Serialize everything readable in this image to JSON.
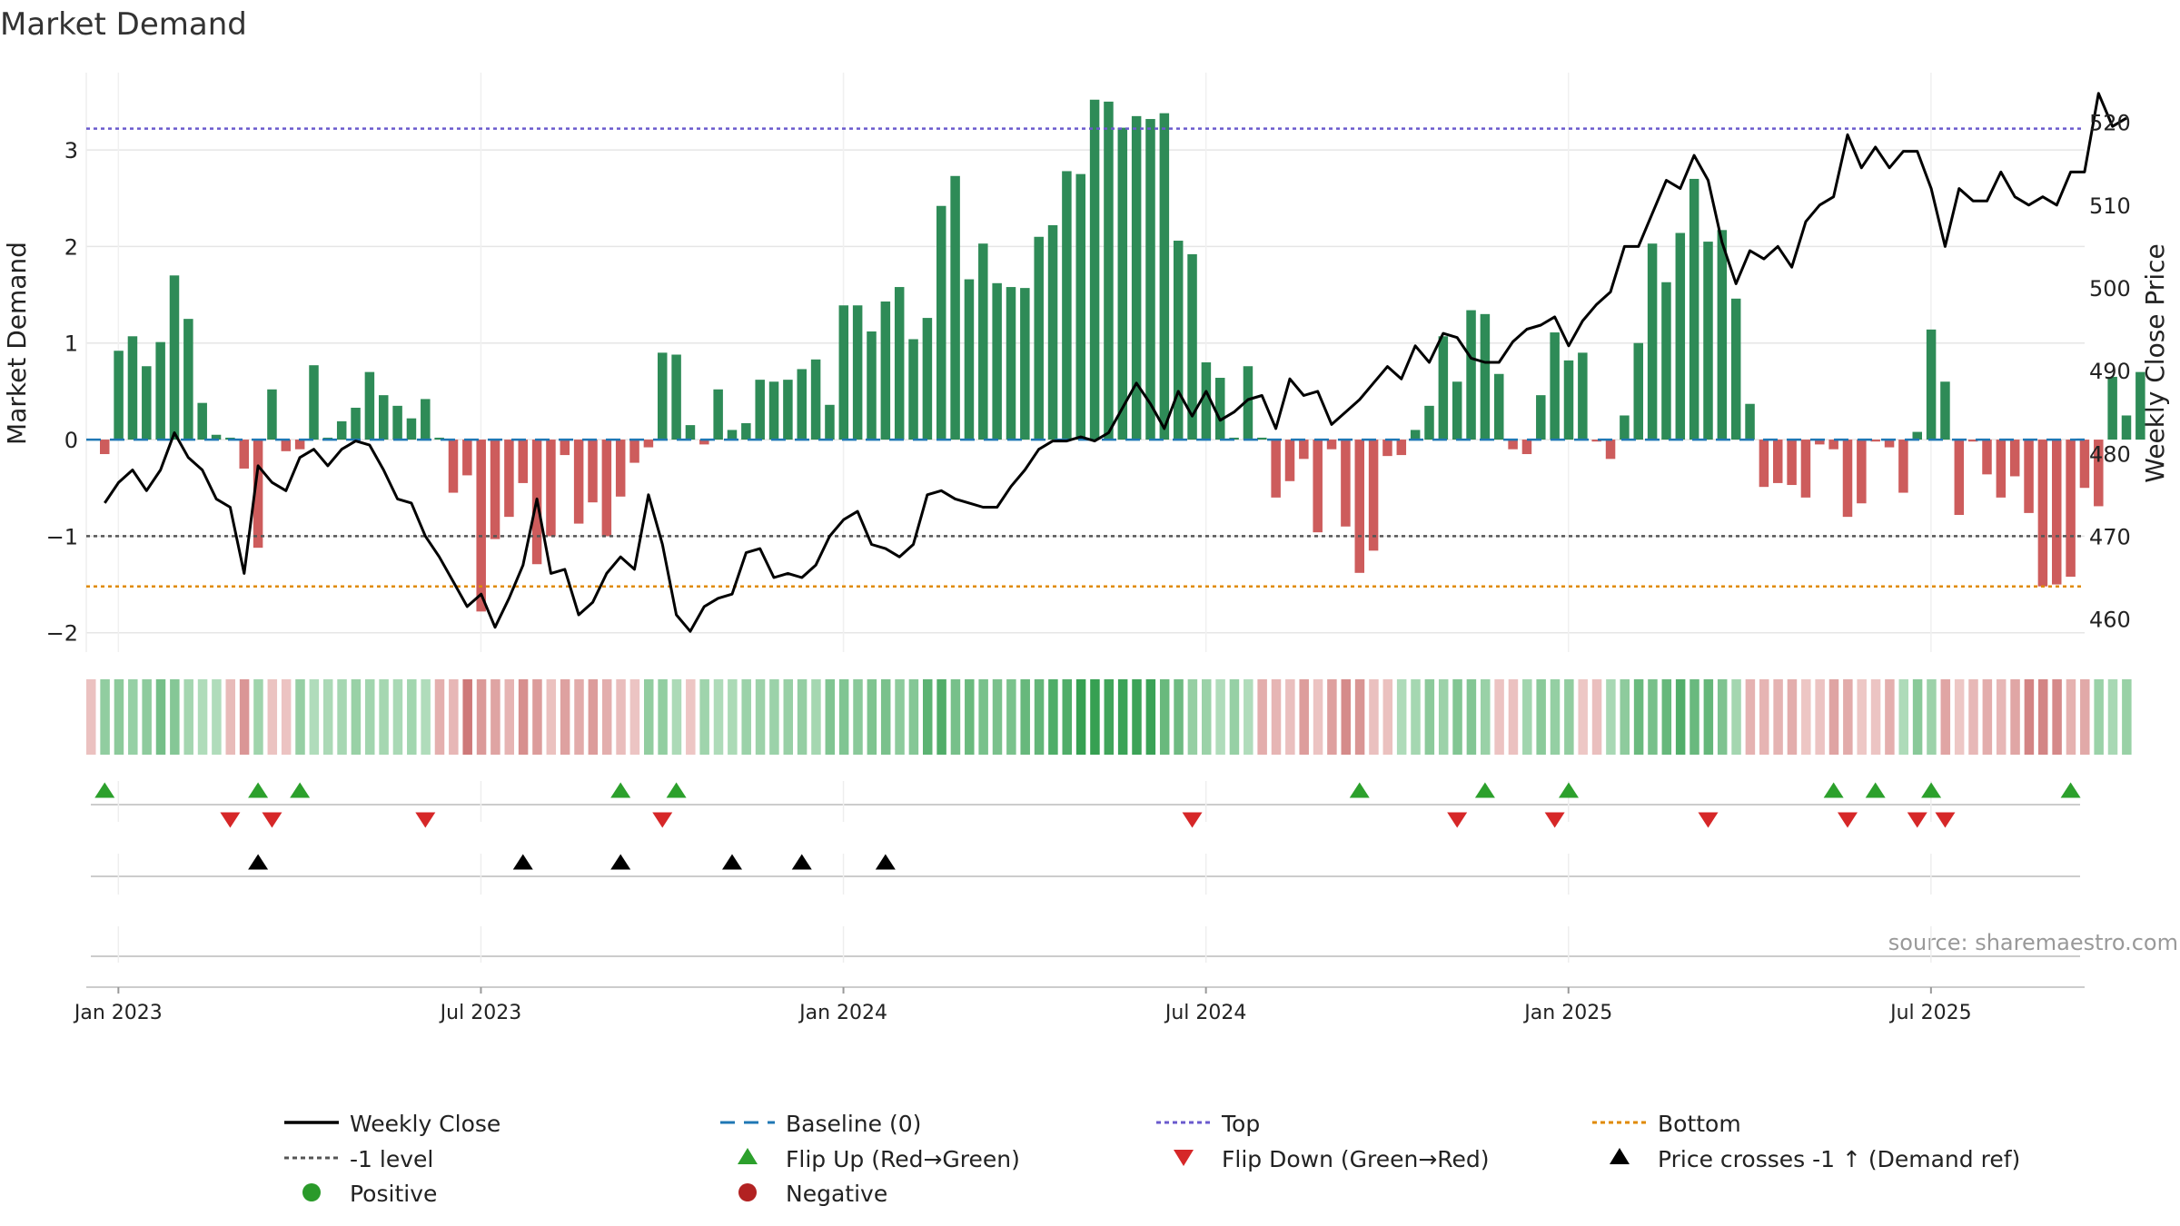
{
  "chart_data": {
    "type": "bar",
    "title": "Market Demand",
    "ylabel_left": "Market Demand",
    "ylabel_right": "Weekly Close Price",
    "source": "source: sharemaestro.com",
    "ylim_left": [
      -2.2,
      3.8
    ],
    "ylim_right": [
      456.0,
      526.0
    ],
    "yticks_left": [
      -2,
      -1,
      0,
      1,
      2,
      3
    ],
    "yticks_right": [
      460,
      470,
      480,
      490,
      500,
      510,
      520
    ],
    "xtick_labels": [
      "Jan 2023",
      "Jul 2023",
      "Jan 2024",
      "Jul 2024",
      "Jan 2025",
      "Jul 2025"
    ],
    "xtick_week_index": [
      1,
      27,
      53,
      79,
      105,
      131
    ],
    "reference_lines": {
      "baseline": 0,
      "top": 3.22,
      "minus_one": -1,
      "bottom": -1.52
    },
    "demand": [
      -0.15,
      0.92,
      1.07,
      0.76,
      1.01,
      1.7,
      1.25,
      0.38,
      0.05,
      0.02,
      -0.3,
      -1.12,
      0.52,
      -0.12,
      -0.1,
      0.77,
      0.02,
      0.19,
      0.33,
      0.7,
      0.46,
      0.35,
      0.22,
      0.42,
      0.02,
      -0.55,
      -0.37,
      -1.78,
      -1.03,
      -0.8,
      -0.45,
      -1.29,
      -1.0,
      -0.16,
      -0.87,
      -0.65,
      -1.0,
      -0.59,
      -0.24,
      -0.08,
      0.9,
      0.88,
      0.15,
      -0.05,
      0.52,
      0.1,
      0.17,
      0.62,
      0.6,
      0.62,
      0.73,
      0.83,
      0.36,
      1.39,
      1.39,
      1.12,
      1.43,
      1.58,
      1.04,
      1.26,
      2.42,
      2.73,
      1.66,
      2.03,
      1.62,
      1.58,
      1.57,
      2.1,
      2.22,
      2.78,
      2.75,
      3.52,
      3.5,
      3.23,
      3.35,
      3.32,
      3.38,
      2.06,
      1.92,
      0.8,
      0.64,
      0.02,
      0.76,
      0.02,
      -0.6,
      -0.43,
      -0.2,
      -0.96,
      -0.1,
      -0.9,
      -1.38,
      -1.15,
      -0.17,
      -0.16,
      0.1,
      0.35,
      1.07,
      0.6,
      1.34,
      1.3,
      0.68,
      -0.1,
      -0.15,
      0.46,
      1.11,
      0.82,
      0.9,
      -0.02,
      -0.2,
      0.25,
      1.0,
      2.03,
      1.63,
      2.14,
      2.7,
      2.05,
      2.17,
      1.46,
      0.37,
      -0.49,
      -0.45,
      -0.47,
      -0.6,
      -0.05,
      -0.1,
      -0.8,
      -0.66,
      -0.02,
      -0.08,
      -0.55,
      0.08,
      1.14,
      0.6,
      -0.78,
      -0.02,
      -0.36,
      -0.6,
      -0.38,
      -0.76,
      -1.52,
      -1.5,
      -1.42,
      -0.5,
      -0.69,
      0.65,
      0.25,
      0.7
    ],
    "weekly_close": [
      474.0,
      476.5,
      478.0,
      475.5,
      478.0,
      482.5,
      479.5,
      478.0,
      474.5,
      473.5,
      465.5,
      478.5,
      476.5,
      475.5,
      479.5,
      480.5,
      478.5,
      480.5,
      481.5,
      481.0,
      478.0,
      474.5,
      474.0,
      470.0,
      467.5,
      464.5,
      461.5,
      463.0,
      459.0,
      462.5,
      466.5,
      474.5,
      465.5,
      466.0,
      460.5,
      462.0,
      465.5,
      467.5,
      466.0,
      475.0,
      469.0,
      460.5,
      458.5,
      461.5,
      462.5,
      463.0,
      468.0,
      468.5,
      465.0,
      465.5,
      465.0,
      466.5,
      470.0,
      472.0,
      473.0,
      469.0,
      468.5,
      467.5,
      469.0,
      475.0,
      475.5,
      474.5,
      474.0,
      473.5,
      473.5,
      476.0,
      478.0,
      480.5,
      481.5,
      481.5,
      482.0,
      481.5,
      482.5,
      485.5,
      488.5,
      486.0,
      483.0,
      487.5,
      484.5,
      487.5,
      484.0,
      485.0,
      486.5,
      487.0,
      483.0,
      489.0,
      487.0,
      487.5,
      483.5,
      485.0,
      486.5,
      488.5,
      490.5,
      489.0,
      493.0,
      491.0,
      494.5,
      494.0,
      491.5,
      491.0,
      491.0,
      493.5,
      495.0,
      495.5,
      496.5,
      493.0,
      496.0,
      498.0,
      499.5,
      505.0,
      505.0,
      509.0,
      513.0,
      512.0,
      516.0,
      513.0,
      505.5,
      500.5,
      504.5,
      503.5,
      505.0,
      502.5,
      508.0,
      510.0,
      511.0,
      518.5,
      514.5,
      517.0,
      514.5,
      516.5,
      516.5,
      512.0,
      505.0,
      512.0,
      510.5,
      510.5,
      514.0,
      511.0,
      510.0,
      511.0,
      510.0,
      514.0,
      514.0,
      523.5,
      519.5,
      520.5
    ],
    "flip_up_weeks": [
      0,
      11,
      14,
      37,
      41,
      90,
      99,
      105,
      124,
      127,
      131,
      141
    ],
    "flip_down_weeks": [
      9,
      12,
      23,
      40,
      78,
      97,
      104,
      115,
      125,
      130,
      132
    ],
    "price_cross_weeks": [
      11,
      30,
      37,
      45,
      50,
      56
    ]
  },
  "legend": [
    {
      "label": "Weekly Close",
      "symbol": "solid-line",
      "color": "#000000"
    },
    {
      "label": "Baseline (0)",
      "symbol": "dashed-line",
      "color": "#1f77b4"
    },
    {
      "label": "Top",
      "symbol": "dotted-line",
      "color": "#6a5acd"
    },
    {
      "label": "Bottom",
      "symbol": "dotted-line",
      "color": "#e08a00"
    },
    {
      "label": "-1 level",
      "symbol": "dotted-line",
      "color": "#555555"
    },
    {
      "label": "Flip Up (Red→Green)",
      "symbol": "triangle-up",
      "color": "#2ca02c"
    },
    {
      "label": "Flip Down (Green→Red)",
      "symbol": "triangle-down",
      "color": "#d62728"
    },
    {
      "label": "Price crosses -1 ↑ (Demand ref)",
      "symbol": "triangle-up",
      "color": "#000000"
    },
    {
      "label": "Positive",
      "symbol": "circle",
      "color": "#2a9a2a"
    },
    {
      "label": "Negative",
      "symbol": "circle",
      "color": "#b22222"
    }
  ],
  "colors": {
    "positive_bar": "#2e8b57",
    "negative_bar": "#cd5c5c",
    "close_line": "#000000",
    "grid": "#e6e6e6",
    "text": "#222222",
    "source_text": "#999999"
  }
}
